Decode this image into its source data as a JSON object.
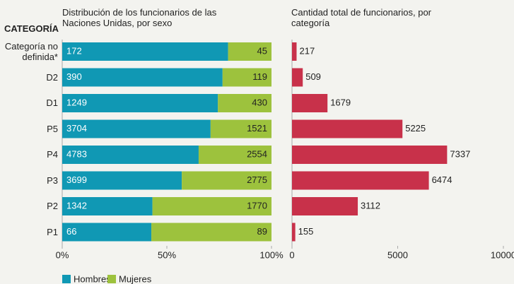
{
  "chart_data": [
    {
      "type": "stacked_percent_bar",
      "orientation": "horizontal",
      "title": "Distribución de los funcionarios de las Naciones Unidas, por sexo",
      "y_label": "CATEGORÍA",
      "categories": [
        "Categoría no definida*",
        "D2",
        "D1",
        "P5",
        "P4",
        "P3",
        "P2",
        "P1"
      ],
      "series": [
        {
          "name": "Hombres",
          "color": "#1098b4",
          "values": [
            172,
            390,
            1249,
            3704,
            4783,
            3699,
            1342,
            66
          ]
        },
        {
          "name": "Mujeres",
          "color": "#9dc23d",
          "values": [
            45,
            119,
            430,
            1521,
            2554,
            2775,
            1770,
            89
          ]
        }
      ],
      "xlim": [
        0,
        100
      ],
      "xticks": [
        {
          "value": 0,
          "label": "0%"
        },
        {
          "value": 50,
          "label": "50%"
        },
        {
          "value": 100,
          "label": "100%"
        }
      ],
      "legend": "bottom"
    },
    {
      "type": "bar",
      "orientation": "horizontal",
      "title": "Cantidad total de funcionarios, por categoría",
      "values": [
        217,
        509,
        1679,
        5225,
        7337,
        6474,
        3112,
        155
      ],
      "color": "#c8314a",
      "xlim": [
        0,
        10000
      ],
      "xticks": [
        0,
        5000,
        10000
      ]
    }
  ]
}
